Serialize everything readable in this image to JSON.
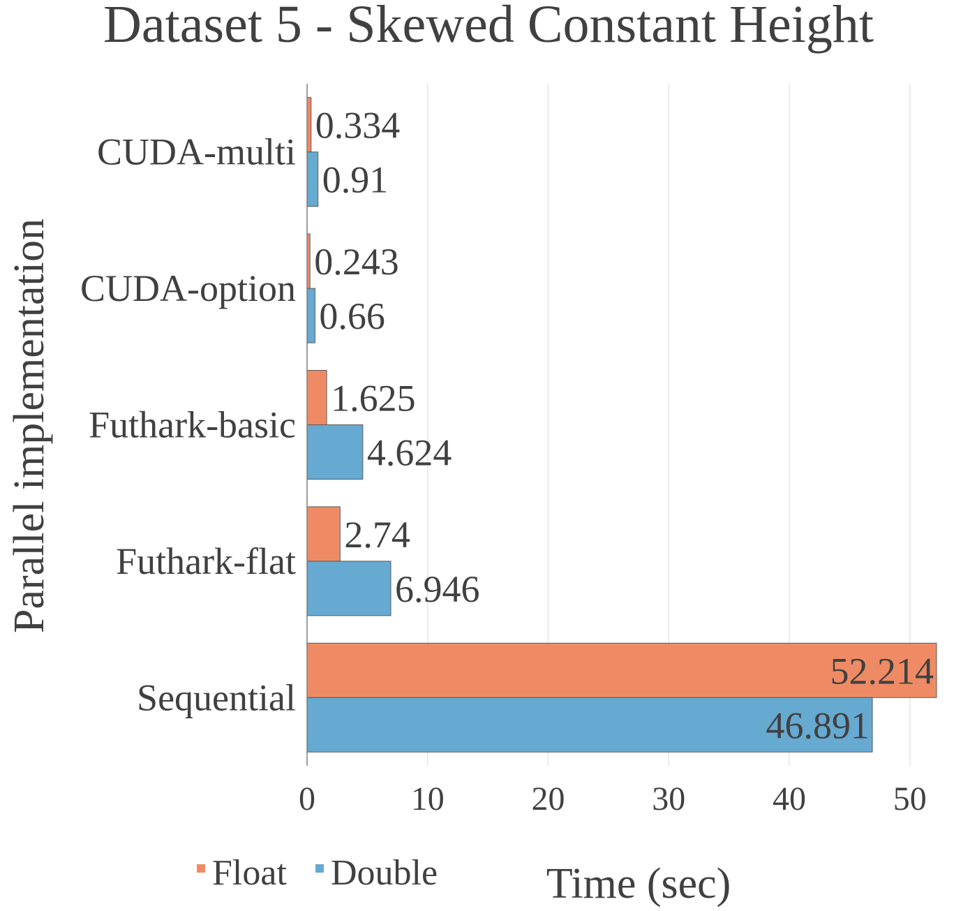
{
  "chart_data": {
    "type": "bar",
    "orientation": "horizontal",
    "title": "Dataset 5 - Skewed Constant Height",
    "xlabel": "Time (sec)",
    "ylabel": "Parallel implementation",
    "categories": [
      "CUDA-multi",
      "CUDA-option",
      "Futhark-basic",
      "Futhark-flat",
      "Sequential"
    ],
    "series": [
      {
        "name": "Float",
        "color": "#ef8b64",
        "values": [
          0.334,
          0.243,
          1.625,
          2.74,
          52.214
        ]
      },
      {
        "name": "Double",
        "color": "#66a9d1",
        "values": [
          0.91,
          0.66,
          4.624,
          6.946,
          46.891
        ]
      }
    ],
    "data_labels": [
      [
        "0.334",
        "0.243",
        "1.625",
        "2.74",
        "52.214"
      ],
      [
        "0.91",
        "0.66",
        "4.624",
        "6.946",
        "46.891"
      ]
    ],
    "xlim": [
      0,
      52.214
    ],
    "xticks": [
      0,
      10,
      20,
      30,
      40,
      50
    ],
    "xtick_labels": [
      "0",
      "10",
      "20",
      "30",
      "40",
      "50"
    ],
    "grid": true,
    "legend_position": "bottom-left"
  }
}
